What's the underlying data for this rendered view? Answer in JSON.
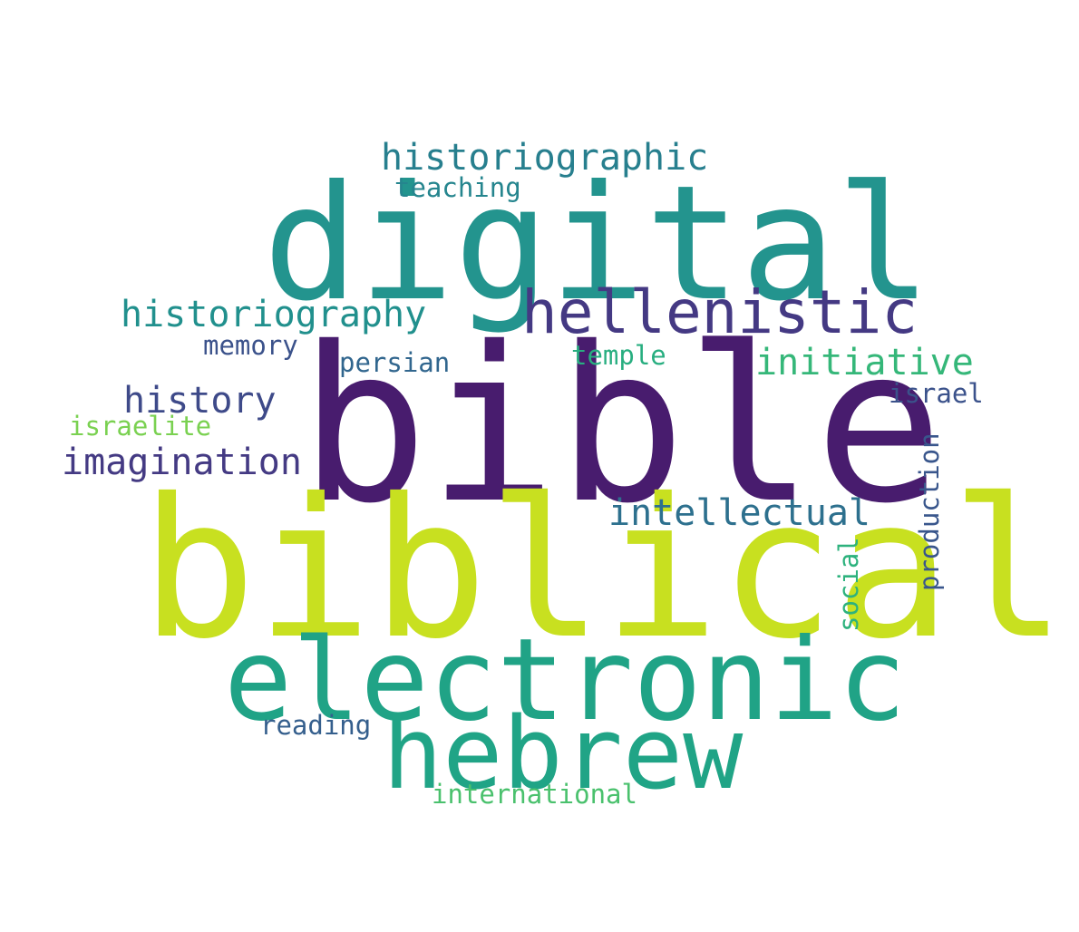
{
  "background_color": "#ffffff",
  "words": {
    "bible": {
      "text": "bible",
      "color": "#481c6e"
    },
    "biblical": {
      "text": "biblical",
      "color": "#c8e020"
    },
    "digital": {
      "text": "digital",
      "color": "#23948e"
    },
    "electronic": {
      "text": "electronic",
      "color": "#20a386"
    },
    "hebrew": {
      "text": "hebrew",
      "color": "#20a486"
    },
    "hellenistic": {
      "text": "hellenistic",
      "color": "#443983"
    },
    "historiographic": {
      "text": "historiographic",
      "color": "#277f8e"
    },
    "historiography": {
      "text": "historiography",
      "color": "#21908d"
    },
    "intellectual": {
      "text": "intellectual",
      "color": "#2d708e"
    },
    "initiative": {
      "text": "initiative",
      "color": "#35b779"
    },
    "history": {
      "text": "history",
      "color": "#3e4a89"
    },
    "imagination": {
      "text": "imagination",
      "color": "#443a83"
    },
    "teaching": {
      "text": "teaching",
      "color": "#25858e"
    },
    "memory": {
      "text": "memory",
      "color": "#3b528b"
    },
    "persian": {
      "text": "persian",
      "color": "#31668e"
    },
    "temple": {
      "text": "temple",
      "color": "#28ae80"
    },
    "israel": {
      "text": "israel",
      "color": "#3b528b"
    },
    "israelite": {
      "text": "israelite",
      "color": "#7ad151"
    },
    "reading": {
      "text": "reading",
      "color": "#355f8d"
    },
    "international": {
      "text": "international",
      "color": "#4ac16d"
    },
    "production": {
      "text": "production",
      "color": "#39568c"
    },
    "social": {
      "text": "social",
      "color": "#2db27d"
    }
  }
}
